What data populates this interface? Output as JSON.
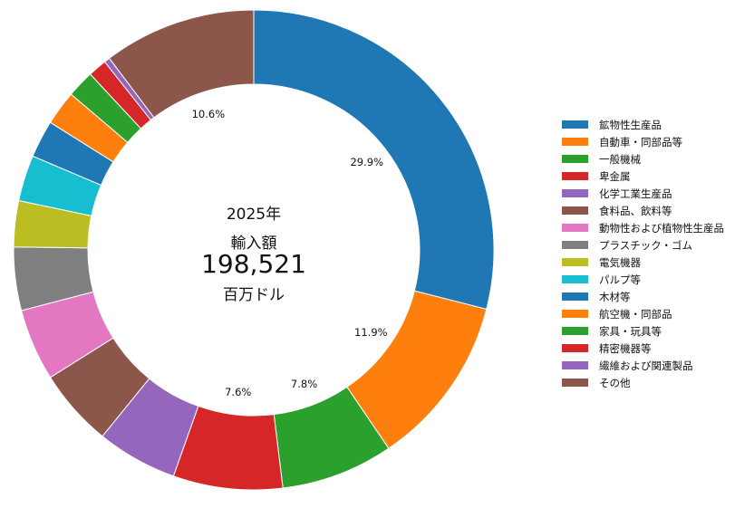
{
  "center": {
    "year": "2025年",
    "label": "輸入額",
    "value": "198,521",
    "unit": "百万ドル"
  },
  "chart_data": {
    "type": "pie",
    "hole": true,
    "start": "top",
    "direction": "clockwise",
    "legend_position": "right",
    "slices": [
      {
        "name": "鉱物性生産品",
        "value": 29.9,
        "label": "29.9%",
        "color": "#1f77b4"
      },
      {
        "name": "自動車・同部品等",
        "value": 11.9,
        "label": "11.9%",
        "color": "#ff7f0e"
      },
      {
        "name": "一般機械",
        "value": 7.8,
        "label": "7.8%",
        "color": "#2ca02c"
      },
      {
        "name": "卑金属",
        "value": 7.6,
        "label": "7.6%",
        "color": "#d62728"
      },
      {
        "name": "化学工業生産品",
        "value": 5.6,
        "label": "",
        "color": "#9467bd"
      },
      {
        "name": "食料品、飲料等",
        "value": 5.4,
        "label": "",
        "color": "#8c564b"
      },
      {
        "name": "動物性および植物性生産品",
        "value": 5.0,
        "label": "",
        "color": "#e377c2"
      },
      {
        "name": "プラスチック・ゴム",
        "value": 4.4,
        "label": "",
        "color": "#7f7f7f"
      },
      {
        "name": "電気機器",
        "value": 3.2,
        "label": "",
        "color": "#bcbd22"
      },
      {
        "name": "パルプ等",
        "value": 3.2,
        "label": "",
        "color": "#17becf"
      },
      {
        "name": "木材等",
        "value": 2.6,
        "label": "",
        "color": "#1f77b4"
      },
      {
        "name": "航空機・同部品",
        "value": 2.4,
        "label": "",
        "color": "#ff7f0e"
      },
      {
        "name": "家具・玩具等",
        "value": 1.9,
        "label": "",
        "color": "#2ca02c"
      },
      {
        "name": "精密機器等",
        "value": 1.3,
        "label": "",
        "color": "#d62728"
      },
      {
        "name": "繊維および関連製品",
        "value": 0.4,
        "label": "",
        "color": "#9467bd"
      },
      {
        "name": "その他",
        "value": 10.6,
        "label": "10.6%",
        "color": "#8c564b"
      }
    ]
  }
}
